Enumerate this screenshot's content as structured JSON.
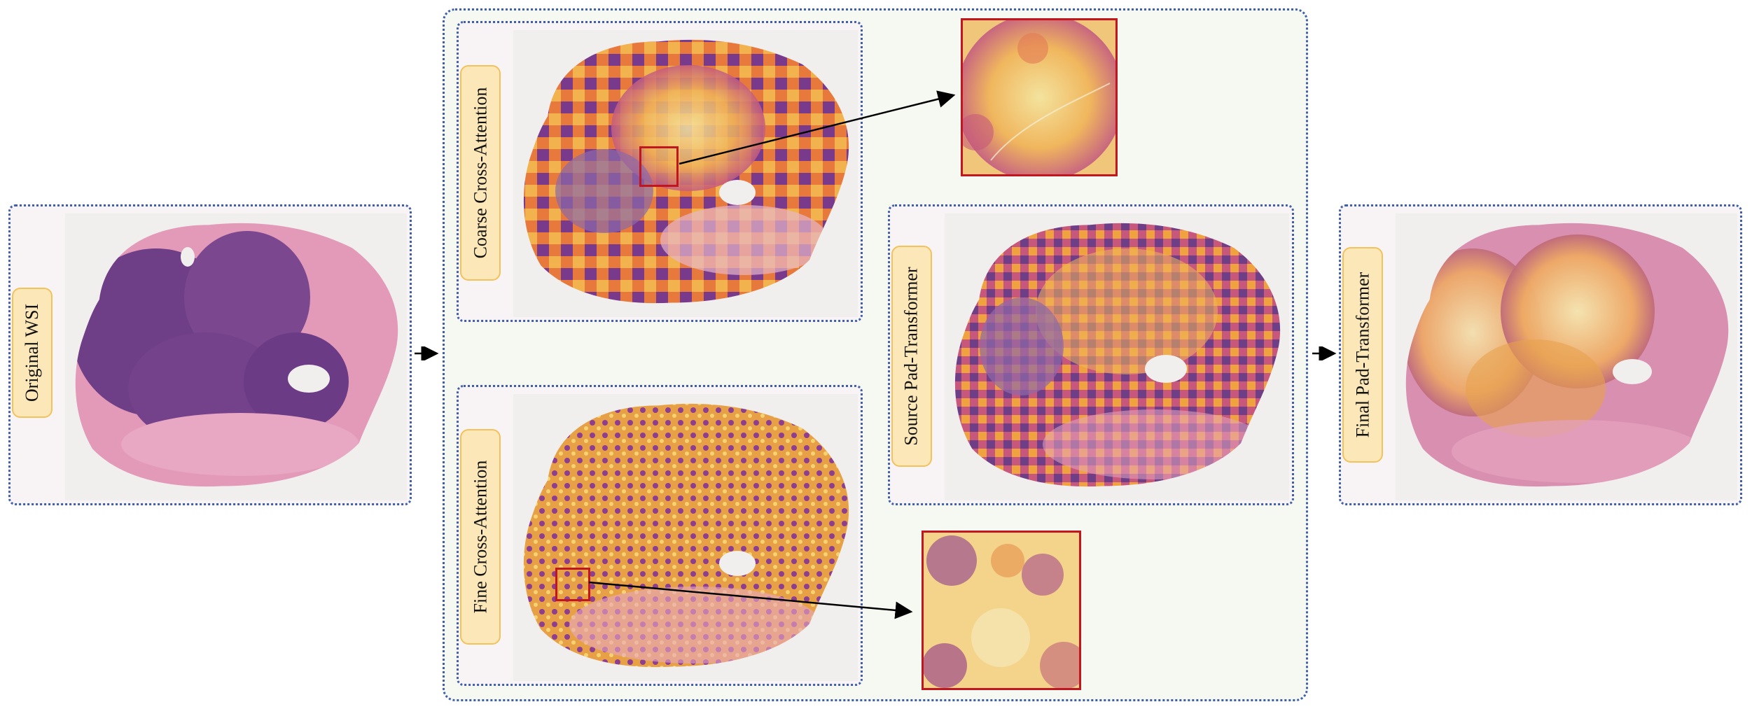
{
  "labels": {
    "original": "Original WSI",
    "coarse": "Coarse Cross-Attention",
    "fine": "Fine Cross-Attention",
    "source": "Source Pad-Transformer",
    "final": "Final Pad-Transformer"
  },
  "colors": {
    "panel_border": "#3f5fa8",
    "label_fill": "#fbe7b7",
    "label_border": "#f2c25c",
    "highlight_box": "#c0161f",
    "tissue_pink": "#e39ab8",
    "tissue_purple": "#6e3e86",
    "heat_yellow": "#f6d77c",
    "heat_orange": "#e8793d"
  }
}
